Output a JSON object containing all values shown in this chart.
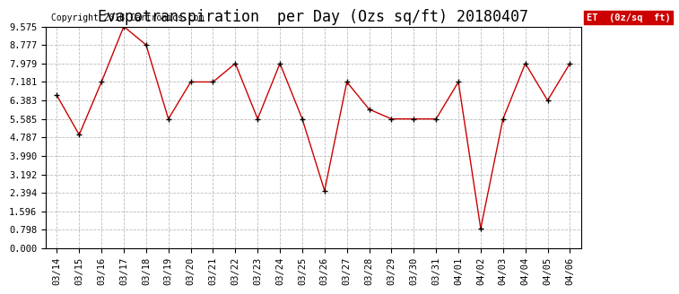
{
  "title": "Evapotranspiration  per Day (Ozs sq/ft) 20180407",
  "copyright": "Copyright 2018 Cartronics.com",
  "legend_label": "ET  (0z/sq  ft)",
  "dates": [
    "03/14",
    "03/15",
    "03/16",
    "03/17",
    "03/18",
    "03/19",
    "03/20",
    "03/21",
    "03/22",
    "03/23",
    "03/24",
    "03/25",
    "03/26",
    "03/27",
    "03/28",
    "03/29",
    "03/30",
    "03/31",
    "04/01",
    "04/02",
    "04/03",
    "04/04",
    "04/05",
    "04/06"
  ],
  "values": [
    6.6,
    4.9,
    7.181,
    9.575,
    8.777,
    5.585,
    7.181,
    7.181,
    7.979,
    5.585,
    7.979,
    5.585,
    2.49,
    7.181,
    6.0,
    5.585,
    5.585,
    5.585,
    7.181,
    0.85,
    5.585,
    7.979,
    6.383,
    7.979
  ],
  "line_color": "#cc0000",
  "marker_color": "#000000",
  "marker_size": 5,
  "ylim": [
    0.0,
    9.575
  ],
  "yticks": [
    0.0,
    0.798,
    1.596,
    2.394,
    3.192,
    3.99,
    4.787,
    5.585,
    6.383,
    7.181,
    7.979,
    8.777,
    9.575
  ],
  "background_color": "#ffffff",
  "grid_color": "#bbbbbb",
  "title_fontsize": 12,
  "copyright_fontsize": 7,
  "legend_bg": "#cc0000",
  "legend_text_color": "#ffffff",
  "tick_fontsize": 7.5
}
